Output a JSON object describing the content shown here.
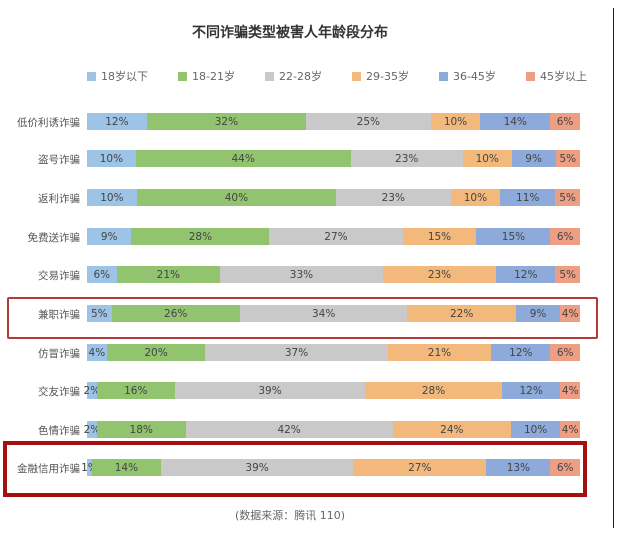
{
  "chart_data": {
    "type": "bar",
    "orientation": "horizontal",
    "stacked": true,
    "title": "不同诈骗类型被害人年龄段分布",
    "legend_position": "top",
    "categories": [
      "低价利诱诈骗",
      "盗号诈骗",
      "返利诈骗",
      "免费送诈骗",
      "交易诈骗",
      "兼职诈骗",
      "仿冒诈骗",
      "交友诈骗",
      "色情诈骗",
      "金融信用诈骗"
    ],
    "series": [
      {
        "name": "18岁以下",
        "color": "#9dc3e6",
        "values": [
          12,
          10,
          10,
          9,
          6,
          5,
          4,
          2,
          2,
          1
        ]
      },
      {
        "name": "18-21岁",
        "color": "#92c46f",
        "values": [
          32,
          44,
          40,
          28,
          21,
          26,
          20,
          16,
          18,
          14
        ]
      },
      {
        "name": "22-28岁",
        "color": "#c9c9c9",
        "values": [
          25,
          23,
          23,
          27,
          33,
          34,
          37,
          39,
          42,
          39
        ]
      },
      {
        "name": "29-35岁",
        "color": "#f3b97c",
        "values": [
          10,
          10,
          10,
          15,
          23,
          22,
          21,
          28,
          24,
          27
        ]
      },
      {
        "name": "36-45岁",
        "color": "#8eaadb",
        "values": [
          14,
          9,
          11,
          15,
          12,
          9,
          12,
          12,
          10,
          13
        ]
      },
      {
        "name": "45岁以上",
        "color": "#ee9e82",
        "values": [
          6,
          5,
          5,
          6,
          5,
          4,
          6,
          4,
          4,
          6
        ]
      }
    ],
    "highlighted_categories": [
      "兼职诈骗",
      "金融信用诈骗"
    ],
    "grid": false
  },
  "source": "(数据来源：腾讯 110)"
}
